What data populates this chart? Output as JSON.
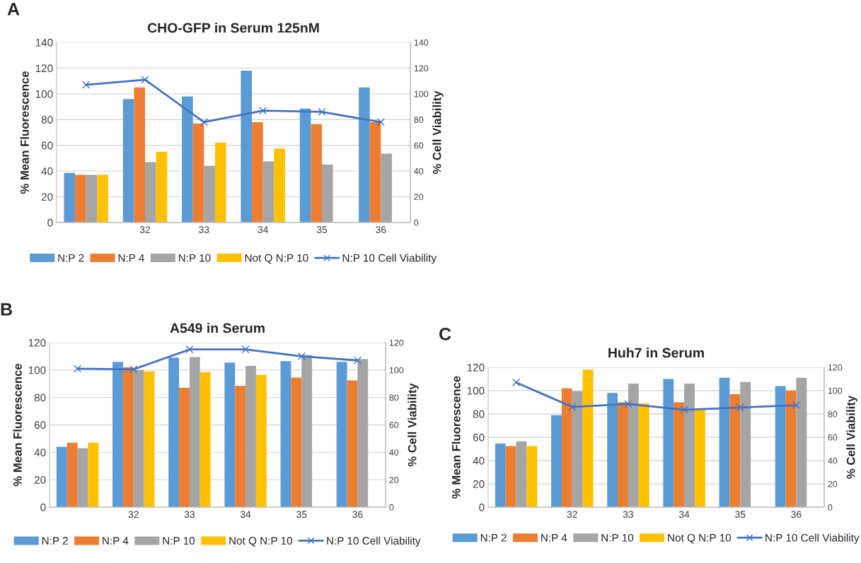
{
  "chart_data": [
    {
      "type": "bar",
      "title": "CHO-GFP in Serum 125nM",
      "annotations": [
        "A"
      ],
      "xlabel": null,
      "ylabel": "% Mean Fluorescence",
      "y2label": "% Cell Viability",
      "categories": [
        null,
        "32",
        "33",
        "34",
        "35",
        "36"
      ],
      "ylim": [
        0,
        140
      ],
      "yticks": [
        0,
        20,
        40,
        60,
        80,
        100,
        120,
        140
      ],
      "y2lim": [
        0,
        140
      ],
      "y2ticks": [
        0,
        20,
        40,
        60,
        80,
        100,
        120,
        140
      ],
      "grid": "y",
      "legend": "bottom",
      "series": [
        {
          "name": "N:P 2",
          "color": "#5b9bd5",
          "values": [
            38.5,
            96,
            98,
            118,
            88.5,
            105
          ]
        },
        {
          "name": "N:P 4",
          "color": "#ed7d31",
          "values": [
            37,
            105,
            77,
            78,
            76.5,
            78
          ]
        },
        {
          "name": "N:P 10",
          "color": "#a5a5a5",
          "values": [
            37,
            47,
            44,
            47.5,
            45,
            53.5
          ]
        },
        {
          "name": "Not Q N:P 10",
          "color": "#ffc000",
          "values": [
            37,
            55,
            62,
            57.5,
            null,
            null
          ]
        },
        {
          "name": "N:P 10 Cell Viability",
          "type": "line",
          "axis": "y2",
          "marker": "cross",
          "color": "#4472c4",
          "values": [
            107,
            111,
            78,
            87,
            86,
            78
          ]
        }
      ]
    },
    {
      "type": "bar",
      "title": "A549 in Serum",
      "annotations": [
        "B"
      ],
      "ylabel": "% Mean Fluorescence",
      "y2label": "% Cell Viability",
      "categories": [
        null,
        "32",
        "33",
        "34",
        "35",
        "36"
      ],
      "ylim": [
        0,
        120
      ],
      "yticks": [
        0,
        20,
        40,
        60,
        80,
        100,
        120
      ],
      "y2lim": [
        0,
        120
      ],
      "y2ticks": [
        0,
        20,
        40,
        60,
        80,
        100,
        120
      ],
      "grid": "y",
      "legend": "bottom",
      "series": [
        {
          "name": "N:P 2",
          "color": "#5b9bd5",
          "values": [
            44,
            106,
            109,
            105.5,
            106.5,
            106
          ]
        },
        {
          "name": "N:P 4",
          "color": "#ed7d31",
          "values": [
            47,
            102,
            87,
            88.5,
            94.5,
            92.5
          ]
        },
        {
          "name": "N:P 10",
          "color": "#a5a5a5",
          "values": [
            43,
            100,
            109.5,
            103,
            111,
            108
          ]
        },
        {
          "name": "Not Q N:P 10",
          "color": "#ffc000",
          "values": [
            47,
            99,
            98.5,
            96.5,
            null,
            null
          ]
        },
        {
          "name": "N:P 10 Cell Viability",
          "type": "line",
          "axis": "y2",
          "marker": "cross",
          "color": "#4472c4",
          "values": [
            101,
            100.5,
            115,
            115,
            110,
            107
          ]
        }
      ]
    },
    {
      "type": "bar",
      "title": "Huh7 in Serum",
      "annotations": [
        "C"
      ],
      "ylabel": "% Mean Fluorescence",
      "y2label": "% Cell Viability",
      "categories": [
        null,
        "32",
        "33",
        "34",
        "35",
        "36"
      ],
      "ylim": [
        0,
        120
      ],
      "yticks": [
        0,
        20,
        40,
        60,
        80,
        100,
        120
      ],
      "y2lim": [
        0,
        120
      ],
      "y2ticks": [
        0,
        20,
        40,
        60,
        80,
        100,
        120
      ],
      "grid": "y",
      "legend": "bottom",
      "series": [
        {
          "name": "N:P 2",
          "color": "#5b9bd5",
          "values": [
            54.5,
            79,
            98,
            110,
            111,
            104
          ]
        },
        {
          "name": "N:P 4",
          "color": "#ed7d31",
          "values": [
            52.5,
            102,
            90,
            90,
            97,
            100
          ]
        },
        {
          "name": "N:P 10",
          "color": "#a5a5a5",
          "values": [
            56.5,
            99.5,
            106,
            106,
            107.5,
            111
          ]
        },
        {
          "name": "Not Q N:P 10",
          "color": "#ffc000",
          "values": [
            52.5,
            118,
            89,
            84,
            null,
            null
          ]
        },
        {
          "name": "N:P 10 Cell Viability",
          "type": "line",
          "axis": "y2",
          "marker": "cross",
          "color": "#4472c4",
          "values": [
            107,
            86,
            88.5,
            83.5,
            85.5,
            87.5
          ]
        }
      ]
    }
  ]
}
